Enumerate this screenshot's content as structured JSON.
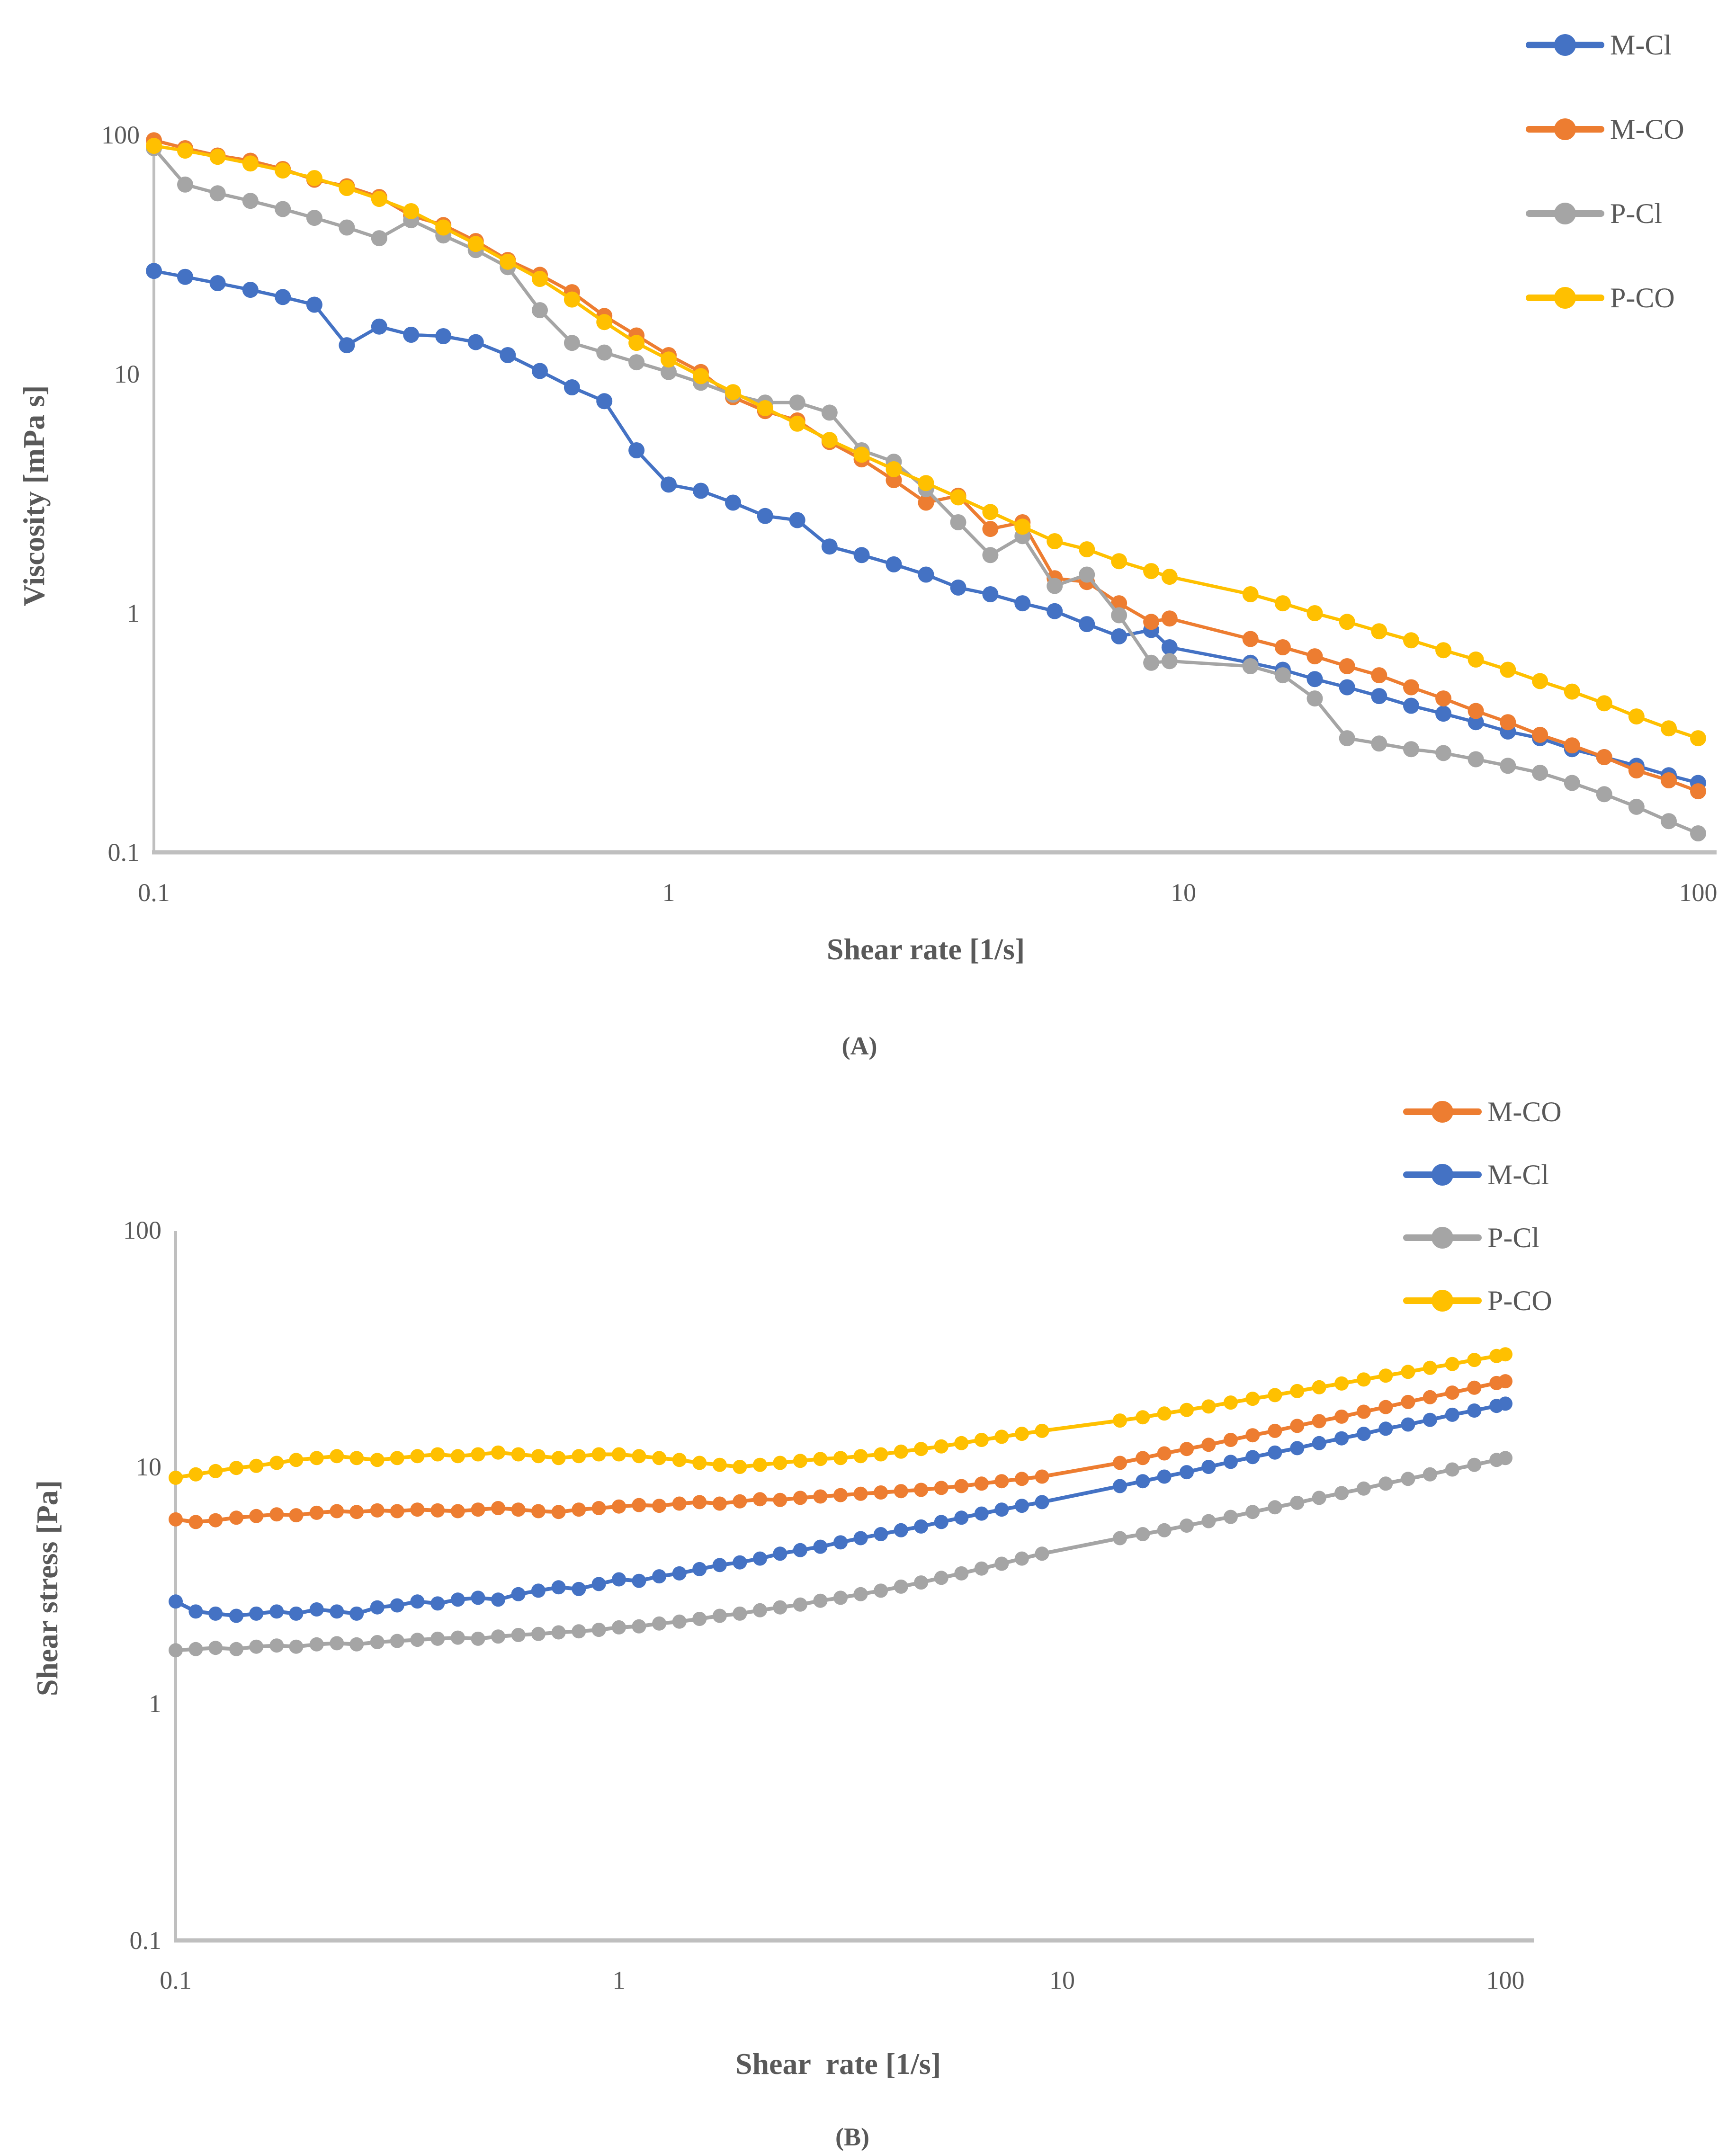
{
  "page": {
    "background": "#ffffff",
    "text_color": "#595959",
    "axis_color": "#BFBFBF"
  },
  "chart_data": [
    {
      "id": "A",
      "type": "line",
      "caption": "(A)",
      "xlabel": "Shear rate [1/s]",
      "ylabel": "Viscosity [mPa s]",
      "x_scale": "log",
      "y_scale": "log",
      "x_range": [
        0.1,
        100
      ],
      "y_range": [
        0.1,
        100
      ],
      "x_ticks": [
        "0.1",
        "1",
        "10",
        "100"
      ],
      "y_ticks": [
        "100",
        "10",
        "1",
        "0.1"
      ],
      "grid": false,
      "legend_position": "outside-top-right",
      "x": [
        0.1,
        0.115,
        0.133,
        0.154,
        0.178,
        0.205,
        0.237,
        0.274,
        0.316,
        0.365,
        0.422,
        0.487,
        0.562,
        0.649,
        0.75,
        0.866,
        1.0,
        1.155,
        1.334,
        1.54,
        1.778,
        2.054,
        2.371,
        2.738,
        3.162,
        3.652,
        4.217,
        4.87,
        5.623,
        6.494,
        7.499,
        8.66,
        9.4,
        13.5,
        15.6,
        18.0,
        20.8,
        24.0,
        27.7,
        32.0,
        37.0,
        42.7,
        49.3,
        56.9,
        65.7,
        75.9,
        87.7,
        100
      ],
      "series": [
        {
          "name": "M-Cl",
          "color": "#4472C4",
          "y": [
            27,
            25.5,
            24,
            22.5,
            21,
            19.5,
            13.2,
            15.8,
            14.6,
            14.4,
            13.6,
            12,
            10.3,
            8.8,
            7.7,
            4.8,
            3.45,
            3.25,
            2.9,
            2.55,
            2.45,
            1.9,
            1.75,
            1.6,
            1.45,
            1.28,
            1.2,
            1.1,
            1.02,
            0.9,
            0.8,
            0.85,
            0.72,
            0.62,
            0.58,
            0.53,
            0.49,
            0.45,
            0.41,
            0.38,
            0.35,
            0.32,
            0.3,
            0.27,
            0.25,
            0.23,
            0.21,
            0.195
          ]
        },
        {
          "name": "M-CO",
          "color": "#ED7D31",
          "y": [
            95,
            88,
            82,
            78,
            72,
            65,
            61,
            55,
            46,
            42,
            36,
            30,
            26,
            22,
            17.5,
            14.5,
            12,
            10.2,
            8.0,
            7.0,
            6.4,
            5.2,
            4.4,
            3.6,
            2.9,
            3.1,
            2.25,
            2.4,
            1.4,
            1.35,
            1.1,
            0.92,
            0.95,
            0.78,
            0.72,
            0.66,
            0.6,
            0.55,
            0.49,
            0.44,
            0.39,
            0.35,
            0.31,
            0.28,
            0.25,
            0.22,
            0.2,
            0.18
          ]
        },
        {
          "name": "P-Cl",
          "color": "#A5A5A5",
          "y": [
            88,
            62,
            57,
            53,
            49,
            45,
            41,
            37,
            44,
            38,
            33,
            28,
            18.5,
            13.5,
            12.3,
            11.2,
            10.2,
            9.2,
            8.2,
            7.6,
            7.6,
            6.9,
            4.8,
            4.3,
            3.3,
            2.4,
            1.75,
            2.1,
            1.3,
            1.45,
            0.98,
            0.62,
            0.63,
            0.6,
            0.55,
            0.44,
            0.3,
            0.285,
            0.27,
            0.26,
            0.245,
            0.23,
            0.215,
            0.195,
            0.175,
            0.155,
            0.135,
            0.12
          ]
        },
        {
          "name": "P-CO",
          "color": "#FFC000",
          "y": [
            90,
            86,
            81,
            76,
            71,
            66,
            60,
            54,
            48,
            41,
            35,
            29.5,
            25,
            20.5,
            16.5,
            13.5,
            11.5,
            9.8,
            8.4,
            7.2,
            6.2,
            5.3,
            4.6,
            4.0,
            3.5,
            3.05,
            2.65,
            2.3,
            2.0,
            1.85,
            1.65,
            1.5,
            1.42,
            1.2,
            1.1,
            1.0,
            0.92,
            0.84,
            0.77,
            0.7,
            0.64,
            0.58,
            0.52,
            0.47,
            0.42,
            0.37,
            0.33,
            0.3
          ]
        }
      ]
    },
    {
      "id": "B",
      "type": "line",
      "caption": "(B)",
      "xlabel": "Shear  rate [1/s]",
      "ylabel": "Shear stress [Pa]",
      "x_scale": "log",
      "y_scale": "log",
      "x_range": [
        0.1,
        100
      ],
      "y_range": [
        0.1,
        100
      ],
      "x_ticks": [
        "0.1",
        "1",
        "10",
        "100"
      ],
      "y_ticks": [
        "100",
        "10",
        "1",
        "0.1"
      ],
      "grid": false,
      "legend_position": "inside-top-right",
      "x": [
        0.1,
        0.111,
        0.123,
        0.137,
        0.152,
        0.169,
        0.187,
        0.208,
        0.231,
        0.256,
        0.285,
        0.316,
        0.351,
        0.39,
        0.433,
        0.481,
        0.534,
        0.593,
        0.658,
        0.731,
        0.812,
        0.901,
        1.0,
        1.11,
        1.233,
        1.369,
        1.52,
        1.688,
        1.874,
        2.081,
        2.31,
        2.565,
        2.848,
        3.162,
        3.511,
        3.899,
        4.329,
        4.806,
        5.337,
        5.926,
        6.579,
        7.305,
        8.111,
        9.007,
        13.5,
        15.2,
        17.0,
        19.1,
        21.4,
        24.0,
        26.9,
        30.2,
        33.9,
        38.0,
        42.7,
        47.9,
        53.7,
        60.3,
        67.6,
        75.9,
        85.1,
        95.5,
        100
      ],
      "series": [
        {
          "name": "M-CO",
          "color": "#ED7D31",
          "y": [
            6.0,
            5.85,
            5.95,
            6.1,
            6.2,
            6.3,
            6.25,
            6.4,
            6.5,
            6.45,
            6.55,
            6.5,
            6.6,
            6.55,
            6.5,
            6.6,
            6.7,
            6.6,
            6.5,
            6.45,
            6.6,
            6.7,
            6.8,
            6.9,
            6.85,
            7.0,
            7.1,
            7.0,
            7.15,
            7.3,
            7.25,
            7.4,
            7.5,
            7.6,
            7.7,
            7.8,
            7.9,
            8.0,
            8.15,
            8.3,
            8.5,
            8.7,
            8.9,
            9.1,
            10.4,
            10.9,
            11.4,
            11.9,
            12.4,
            13.0,
            13.6,
            14.2,
            14.9,
            15.6,
            16.3,
            17.1,
            17.9,
            18.8,
            19.7,
            20.6,
            21.6,
            22.6,
            23.0
          ]
        },
        {
          "name": "M-Cl",
          "color": "#4472C4",
          "y": [
            2.7,
            2.45,
            2.4,
            2.35,
            2.4,
            2.45,
            2.4,
            2.5,
            2.45,
            2.4,
            2.55,
            2.6,
            2.7,
            2.65,
            2.75,
            2.8,
            2.75,
            2.9,
            3.0,
            3.1,
            3.05,
            3.2,
            3.35,
            3.3,
            3.45,
            3.55,
            3.7,
            3.85,
            3.95,
            4.1,
            4.3,
            4.45,
            4.6,
            4.8,
            5.0,
            5.2,
            5.4,
            5.6,
            5.85,
            6.1,
            6.35,
            6.6,
            6.85,
            7.1,
            8.3,
            8.7,
            9.1,
            9.5,
            10.0,
            10.5,
            11.0,
            11.5,
            12.0,
            12.6,
            13.2,
            13.8,
            14.5,
            15.1,
            15.8,
            16.6,
            17.3,
            18.1,
            18.5
          ]
        },
        {
          "name": "P-Cl",
          "color": "#A5A5A5",
          "y": [
            1.68,
            1.7,
            1.72,
            1.7,
            1.74,
            1.76,
            1.74,
            1.78,
            1.8,
            1.78,
            1.82,
            1.84,
            1.86,
            1.88,
            1.9,
            1.88,
            1.92,
            1.95,
            1.97,
            2.0,
            2.02,
            2.05,
            2.1,
            2.12,
            2.18,
            2.22,
            2.28,
            2.35,
            2.4,
            2.48,
            2.55,
            2.62,
            2.72,
            2.8,
            2.9,
            3.0,
            3.12,
            3.25,
            3.4,
            3.55,
            3.72,
            3.9,
            4.1,
            4.3,
            5.0,
            5.2,
            5.4,
            5.65,
            5.9,
            6.15,
            6.45,
            6.75,
            7.05,
            7.4,
            7.75,
            8.1,
            8.5,
            8.9,
            9.3,
            9.75,
            10.2,
            10.7,
            10.9
          ]
        },
        {
          "name": "P-CO",
          "color": "#FFC000",
          "y": [
            9.0,
            9.3,
            9.6,
            9.9,
            10.1,
            10.4,
            10.7,
            10.9,
            11.1,
            10.9,
            10.7,
            10.9,
            11.1,
            11.3,
            11.1,
            11.3,
            11.5,
            11.3,
            11.1,
            10.9,
            11.1,
            11.3,
            11.3,
            11.1,
            10.9,
            10.7,
            10.4,
            10.2,
            10.0,
            10.2,
            10.4,
            10.6,
            10.8,
            10.9,
            11.1,
            11.3,
            11.6,
            11.9,
            12.2,
            12.6,
            13.0,
            13.4,
            13.8,
            14.2,
            15.7,
            16.2,
            16.8,
            17.4,
            18.0,
            18.7,
            19.4,
            20.1,
            20.9,
            21.7,
            22.5,
            23.4,
            24.3,
            25.2,
            26.2,
            27.2,
            28.3,
            29.4,
            29.9
          ]
        }
      ]
    }
  ]
}
